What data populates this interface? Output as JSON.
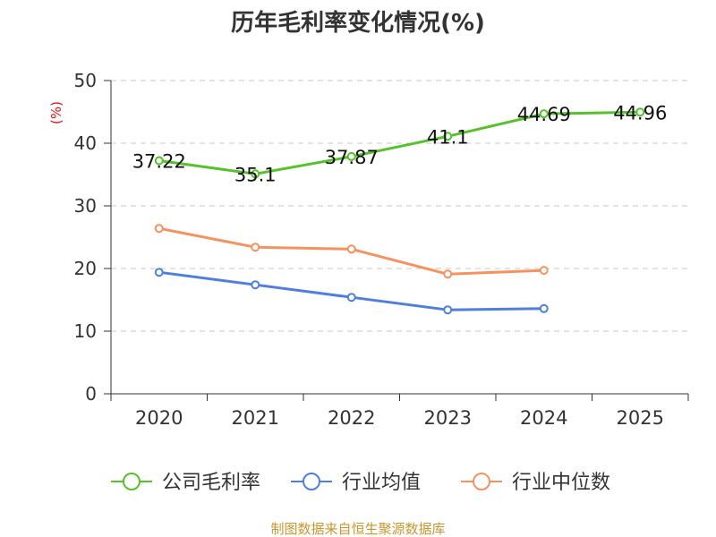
{
  "chart_data": {
    "type": "line",
    "title": "历年毛利率变化情况(%)",
    "xlabel": "",
    "ylabel": "(%)",
    "ylabel_color": "#dd1111",
    "categories": [
      "2020",
      "2021",
      "2022",
      "2023",
      "2024",
      "2025"
    ],
    "ylim": [
      0,
      50
    ],
    "yticks": [
      0,
      10,
      20,
      30,
      40,
      50
    ],
    "grid": true,
    "legend_position": "bottom",
    "series": [
      {
        "name": "公司毛利率",
        "values": [
          37.22,
          35.1,
          37.87,
          41.1,
          44.69,
          44.96
        ],
        "color": "#56c12b",
        "show_labels": true
      },
      {
        "name": "行业均值",
        "values": [
          19.4,
          17.4,
          15.4,
          13.4,
          13.6,
          null
        ],
        "color": "#4e7fdc",
        "show_labels": false
      },
      {
        "name": "行业中位数",
        "values": [
          26.4,
          23.4,
          23.1,
          19.1,
          19.7,
          null
        ],
        "color": "#f6925e",
        "show_labels": false
      }
    ]
  },
  "footer": {
    "source": "制图数据来自恒生聚源数据库",
    "color": "#c8962e"
  }
}
